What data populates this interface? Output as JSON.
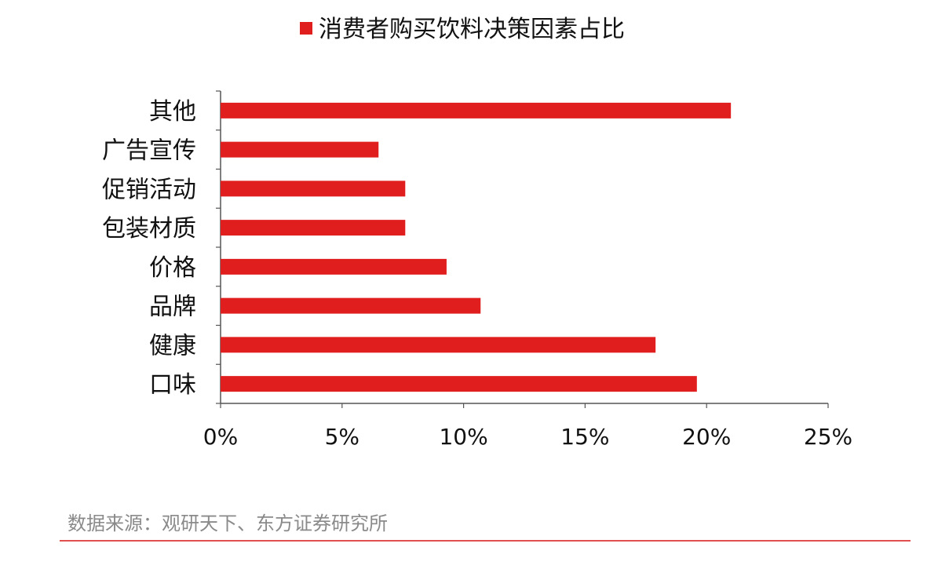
{
  "chart_data": {
    "type": "bar",
    "orientation": "horizontal",
    "title": "",
    "categories": [
      "其他",
      "广告宣传",
      "促销活动",
      "包装材质",
      "价格",
      "品牌",
      "健康",
      "口味"
    ],
    "series": [
      {
        "name": "消费者购买饮料决策因素占比",
        "color": "#e01e1e",
        "values": [
          21.0,
          6.5,
          7.6,
          7.6,
          9.3,
          10.7,
          17.9,
          19.6
        ]
      }
    ],
    "xlim": [
      0,
      25
    ],
    "xticks": [
      "0%",
      "5%",
      "10%",
      "15%",
      "20%",
      "25%"
    ],
    "xtick_values": [
      0,
      5,
      10,
      15,
      20,
      25
    ],
    "grid": false,
    "legend_position": "top-center"
  },
  "source": {
    "text": "数据来源：观研天下、东方证券研究所"
  },
  "colors": {
    "bar": "#e01e1e",
    "axis": "#555555",
    "footer_rule": "#e0504f",
    "source_text": "#8a8a8a"
  }
}
